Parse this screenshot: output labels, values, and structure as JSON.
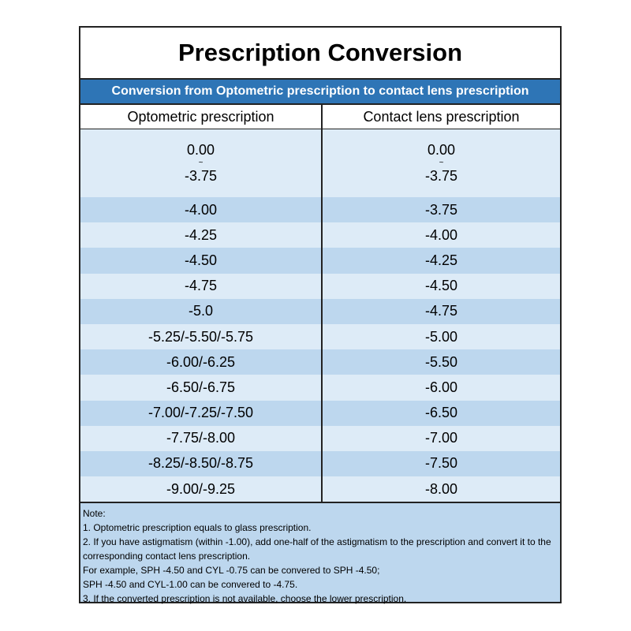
{
  "title": "Prescription Conversion",
  "subtitle": "Conversion from Optometric prescription to contact lens prescription",
  "columns": [
    "Optometric prescription",
    "Contact lens prescription"
  ],
  "range_row": {
    "opt_from": "0.00",
    "opt_to": "-3.75",
    "cl_from": "0.00",
    "cl_to": "-3.75",
    "sep": "~"
  },
  "rows": [
    [
      "-4.00",
      "-3.75"
    ],
    [
      "-4.25",
      "-4.00"
    ],
    [
      "-4.50",
      "-4.25"
    ],
    [
      "-4.75",
      "-4.50"
    ],
    [
      "-5.0",
      "-4.75"
    ],
    [
      "-5.25/-5.50/-5.75",
      "-5.00"
    ],
    [
      "-6.00/-6.25",
      "-5.50"
    ],
    [
      "-6.50/-6.75",
      "-6.00"
    ],
    [
      "-7.00/-7.25/-7.50",
      "-6.50"
    ],
    [
      "-7.75/-8.00",
      "-7.00"
    ],
    [
      "-8.25/-8.50/-8.75",
      "-7.50"
    ],
    [
      "-9.00/-9.25",
      "-8.00"
    ]
  ],
  "notes": [
    "Note:",
    "1. Optometric prescription equals to glass prescription.",
    "2. If you have astigmatism (within -1.00), add one-half of the astigmatism to the prescription and convert it to the corresponding contact lens prescription.",
    "For example, SPH -4.50 and CYL -0.75 can be convered to SPH -4.50;",
    "SPH -4.50 and CYL-1.00 can be convered to -4.75.",
    "3. If the converted prescription is not available, choose the lower prescription."
  ],
  "colors": {
    "accent": "#2e75b6",
    "row_light": "#ddebf7",
    "row_dark": "#bdd7ee"
  }
}
